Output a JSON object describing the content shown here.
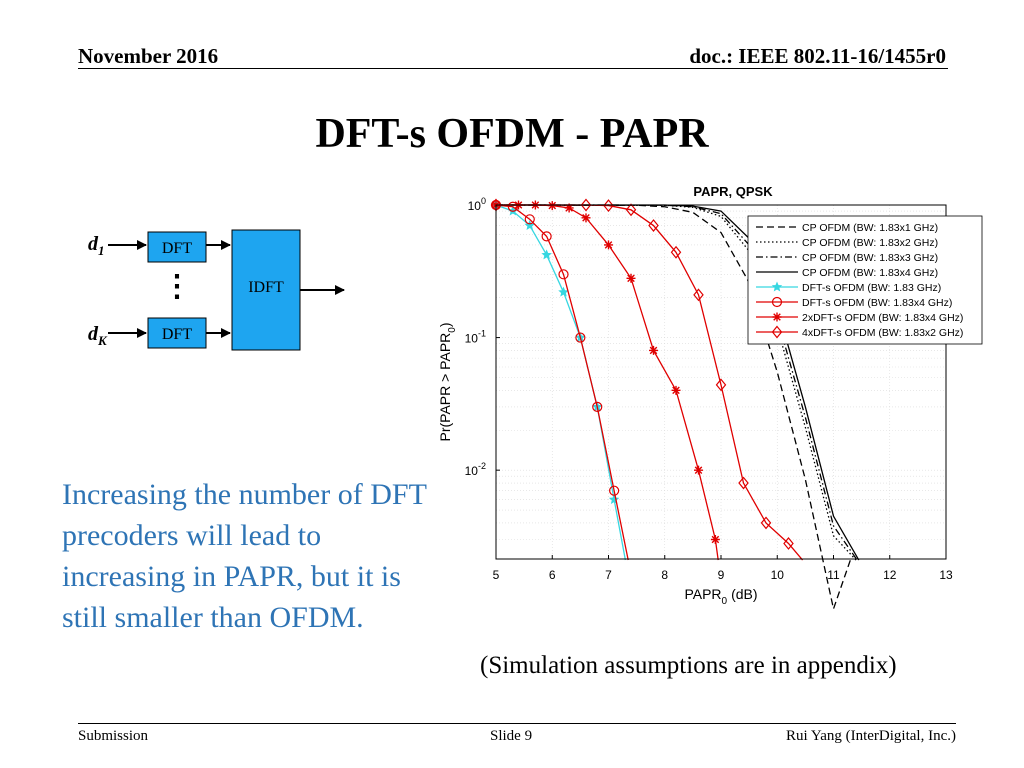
{
  "header": {
    "date": "November 2016",
    "doc": "doc.: IEEE 802.11-16/1455r0"
  },
  "slide_title": "DFT-s OFDM - PAPR",
  "diagram": {
    "input_top": "d",
    "input_top_sub": "1",
    "input_bottom": "d",
    "input_bottom_sub": "K",
    "dft_top": "DFT",
    "dft_bottom": "DFT",
    "idft": "IDFT",
    "ellipsis": "⋮",
    "box_color": "#1ea5f0"
  },
  "body_text": "Increasing the number of DFT precoders will lead to increasing in PAPR, but it is still smaller than OFDM.",
  "sim_note": "(Simulation assumptions are in appendix)",
  "footer": {
    "left": "Submission",
    "center": "Slide 9",
    "right": "Rui Yang (InterDigital, Inc.)"
  },
  "chart_data": {
    "type": "line",
    "title": "PAPR, QPSK",
    "xlabel": "PAPR",
    "xlabel_sub": "0",
    "xlabel_unit": "(dB)",
    "ylabel": "Pr(PAPR > PAPR",
    "ylabel_sub": "0",
    "ylabel_close": ")",
    "x_ticks": [
      "5",
      "6",
      "7",
      "8",
      "9",
      "10",
      "11",
      "12",
      "13"
    ],
    "y_ticks": [
      {
        "base": "10",
        "exp": "0"
      },
      {
        "base": "10",
        "exp": "-1"
      },
      {
        "base": "10",
        "exp": "-2"
      }
    ],
    "xlim": [
      5,
      13
    ],
    "ylim_log10": [
      -2.67,
      0
    ],
    "y_scale": "log",
    "grid": true,
    "legend_position": "top-right",
    "series": [
      {
        "name": "CP OFDM (BW: 1.83x1 GHz)",
        "color": "#000000",
        "dash": "dashed",
        "marker": "none",
        "x": [
          5,
          7.5,
          8.0,
          8.5,
          9.0,
          9.5,
          10.0,
          10.5,
          11.0,
          11.3
        ],
        "y": [
          1.0,
          0.995,
          0.97,
          0.88,
          0.62,
          0.26,
          0.055,
          0.0085,
          0.0009,
          0.0021
        ]
      },
      {
        "name": "CP OFDM (BW: 1.83x2 GHz)",
        "color": "#000000",
        "dash": "dotted",
        "marker": "none",
        "x": [
          5,
          8.0,
          8.5,
          9.0,
          9.5,
          10.0,
          10.5,
          11.0,
          11.4
        ],
        "y": [
          1.0,
          0.995,
          0.96,
          0.82,
          0.45,
          0.12,
          0.021,
          0.0032,
          0.0021
        ]
      },
      {
        "name": "CP OFDM (BW: 1.83x3 GHz)",
        "color": "#000000",
        "dash": "dashdot",
        "marker": "none",
        "x": [
          5,
          8.0,
          8.5,
          9.0,
          9.5,
          10.0,
          10.5,
          11.0,
          11.42
        ],
        "y": [
          1.0,
          0.998,
          0.97,
          0.86,
          0.5,
          0.14,
          0.025,
          0.0038,
          0.0021
        ]
      },
      {
        "name": "CP OFDM (BW: 1.83x4 GHz)",
        "color": "#000000",
        "dash": "solid",
        "marker": "none",
        "x": [
          5,
          8.0,
          8.5,
          9.0,
          9.5,
          10.0,
          10.5,
          11.0,
          11.45
        ],
        "y": [
          1.0,
          0.999,
          0.98,
          0.9,
          0.56,
          0.17,
          0.03,
          0.0045,
          0.0021
        ]
      },
      {
        "name": "DFT-s OFDM (BW: 1.83 GHz)",
        "color": "#37d7e1",
        "dash": "solid",
        "marker": "star",
        "x": [
          5,
          5.3,
          5.6,
          5.9,
          6.2,
          6.5,
          6.8,
          7.1,
          7.3
        ],
        "y": [
          1.0,
          0.9,
          0.7,
          0.42,
          0.22,
          0.1,
          0.03,
          0.006,
          0.0021
        ]
      },
      {
        "name": "DFT-s OFDM (BW: 1.83x4 GHz)",
        "color": "#e00000",
        "dash": "solid",
        "marker": "circle",
        "x": [
          5,
          5.3,
          5.6,
          5.9,
          6.2,
          6.5,
          6.8,
          7.1,
          7.35
        ],
        "y": [
          1.0,
          0.97,
          0.78,
          0.58,
          0.3,
          0.1,
          0.03,
          0.007,
          0.0021
        ]
      },
      {
        "name": "2xDFT-s OFDM (BW: 1.83x4 GHz)",
        "color": "#e00000",
        "dash": "solid",
        "marker": "asterisk",
        "x": [
          5,
          5.4,
          5.7,
          6.0,
          6.3,
          6.6,
          7.0,
          7.4,
          7.8,
          8.2,
          8.6,
          8.9,
          8.95
        ],
        "y": [
          1.0,
          1.0,
          1.0,
          0.99,
          0.95,
          0.8,
          0.5,
          0.28,
          0.08,
          0.04,
          0.01,
          0.003,
          0.0021
        ]
      },
      {
        "name": "4xDFT-s OFDM (BW: 1.83x2 GHz)",
        "color": "#e00000",
        "dash": "solid",
        "marker": "diamond",
        "x": [
          5,
          6.6,
          7.0,
          7.4,
          7.8,
          8.2,
          8.6,
          9.0,
          9.4,
          9.8,
          10.2,
          10.45
        ],
        "y": [
          1.0,
          1.0,
          0.99,
          0.92,
          0.7,
          0.44,
          0.21,
          0.044,
          0.008,
          0.004,
          0.0028,
          0.0021
        ]
      }
    ]
  }
}
